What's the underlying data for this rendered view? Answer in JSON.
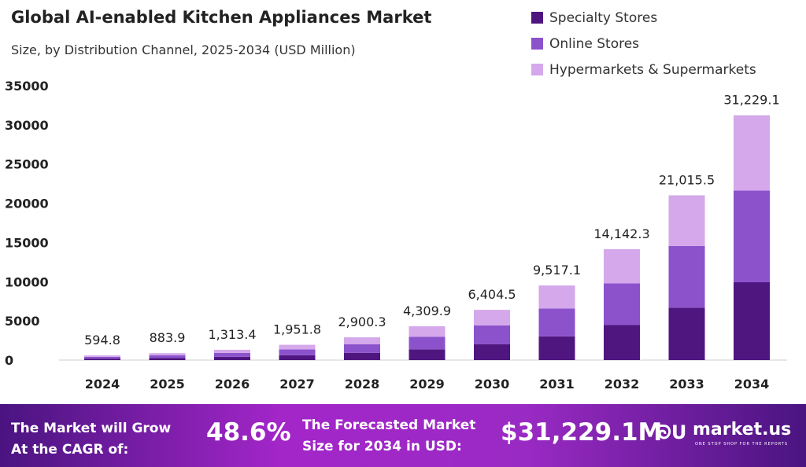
{
  "chart_data": {
    "type": "bar",
    "stacked": true,
    "title": "Global AI-enabled Kitchen Appliances Market",
    "subtitle": "Size, by Distribution Channel, 2025-2034 (USD Million)",
    "categories": [
      "2024",
      "2025",
      "2026",
      "2027",
      "2028",
      "2029",
      "2030",
      "2031",
      "2032",
      "2033",
      "2034"
    ],
    "series": [
      {
        "name": "Specialty Stores",
        "color": "#4f1680",
        "values": [
          189.1,
          281.1,
          417.7,
          620.7,
          922.3,
          1370.6,
          2036.6,
          3026.4,
          4497.2,
          6682.9,
          9930.9
        ]
      },
      {
        "name": "Online Stores",
        "color": "#8b52cc",
        "values": [
          222.5,
          330.6,
          491.2,
          730.0,
          1084.7,
          1611.9,
          2395.3,
          3559.4,
          5289.2,
          7859.8,
          11679.7
        ]
      },
      {
        "name": "Hypermarkets & Supermarkets",
        "color": "#d4a8ea",
        "values": [
          183.2,
          272.2,
          404.5,
          601.1,
          893.3,
          1327.4,
          1972.6,
          2931.3,
          4355.9,
          6472.8,
          9618.5
        ]
      }
    ],
    "totals": [
      "594.8",
      "883.9",
      "1,313.4",
      "1,951.8",
      "2,900.3",
      "4,309.9",
      "6,404.5",
      "9,517.1",
      "14,142.3",
      "21,015.5",
      "31,229.1"
    ],
    "totals_values": [
      594.8,
      883.9,
      1313.4,
      1951.8,
      2900.3,
      4309.9,
      6404.5,
      9517.1,
      14142.3,
      21015.5,
      31229.1
    ],
    "yticks": [
      "0",
      "5000",
      "10000",
      "15000",
      "20000",
      "25000",
      "30000",
      "35000"
    ],
    "ylim": [
      0,
      35000
    ],
    "grid": false,
    "legend": "top-right"
  },
  "footer": {
    "cagr_label_1": "The Market will Grow",
    "cagr_label_2": "At the CAGR of:",
    "cagr": "48.6%",
    "forecast_label_1": "The Forecasted Market",
    "forecast_label_2": "Size for 2034 in USD:",
    "forecast": "$31,229.1M",
    "logo": "market.us",
    "tagline": "ONE STOP SHOP FOR THE REPORTS"
  }
}
